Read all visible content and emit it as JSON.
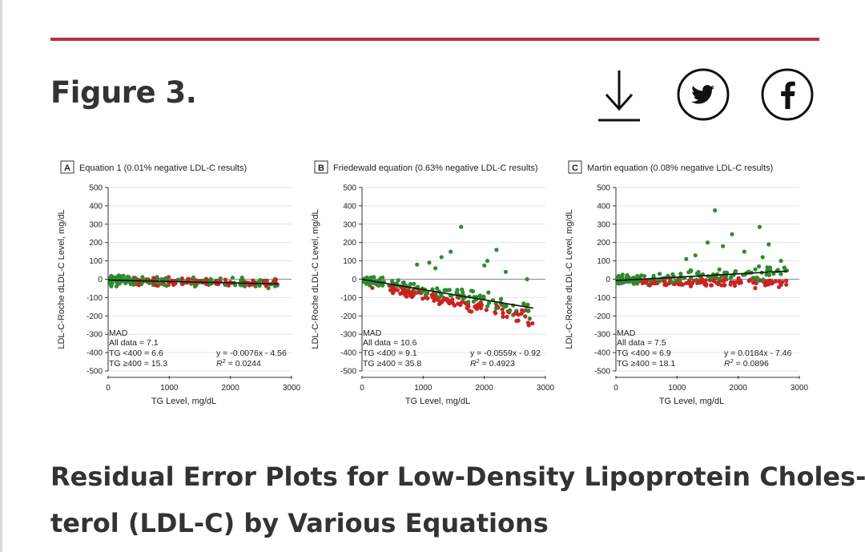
{
  "figure_label": "Figure 3.",
  "caption": {
    "line1": "Residual Error Plots for Low-Density Lipoprotein Choles-",
    "line2": "terol (LDL-C) by Various Equations"
  },
  "share": {
    "download_icon": "download-icon",
    "twitter_icon": "twitter-icon",
    "facebook_icon": "facebook-icon"
  },
  "colors": {
    "accent_rule": "#b5323a",
    "green_points": "#2e8b2e",
    "red_points": "#cc2222",
    "text": "#333333"
  },
  "chart_data": [
    {
      "type": "scatter",
      "panel_letter": "A",
      "title": "Equation 1 (0.01% negative LDL-C results)",
      "xlabel": "TG Level, mg/dL",
      "ylabel": "LDL-C-Roche dLDL-C Level, mg/dL",
      "xlim": [
        0,
        3000
      ],
      "ylim": [
        -500,
        500
      ],
      "x_ticks": [
        "0",
        "1000",
        "2000",
        "3000"
      ],
      "y_ticks": [
        "500",
        "400",
        "300",
        "200",
        "100",
        "0",
        "-100",
        "-200",
        "-300",
        "-400",
        "-500"
      ],
      "grid": true,
      "series": [
        {
          "name": "TG <400",
          "color": "green"
        },
        {
          "name": "TG ≥400",
          "color": "red"
        }
      ],
      "regression": {
        "slope": -0.0076,
        "intercept": -4.56,
        "x_range": [
          0,
          2800
        ]
      },
      "mad": {
        "heading": "MAD",
        "all": "All data = 7.1",
        "lt400": "TG <400 = 6.6",
        "ge400": "TG ≥400 = 15.3"
      },
      "equation_text": "y = -0.0076x - 4.56",
      "r2_label": "R",
      "r2_value": " = 0.0244",
      "scatter": {
        "spread_low": 40,
        "spread_high": 45,
        "red_bias_start": 0,
        "red_bias_end": 0,
        "outliers": []
      }
    },
    {
      "type": "scatter",
      "panel_letter": "B",
      "title": "Friedewald equation (0.63% negative LDL-C results)",
      "xlabel": "TG Level, mg/dL",
      "ylabel": "LDL-C-Roche dLDL-C Level, mg/dL",
      "xlim": [
        0,
        3000
      ],
      "ylim": [
        -500,
        500
      ],
      "x_ticks": [
        "0",
        "1000",
        "2000",
        "3000"
      ],
      "y_ticks": [
        "500",
        "400",
        "300",
        "200",
        "100",
        "0",
        "-100",
        "-200",
        "-300",
        "-400",
        "-500"
      ],
      "grid": true,
      "series": [
        {
          "name": "TG <400",
          "color": "green"
        },
        {
          "name": "TG ≥400",
          "color": "red"
        }
      ],
      "regression": {
        "slope": -0.0559,
        "intercept": -0.92,
        "x_range": [
          0,
          2800
        ]
      },
      "mad": {
        "heading": "MAD",
        "all": "All data = 10.6",
        "lt400": "TG <400 = 9.1",
        "ge400": "TG ≥400 = 35.8"
      },
      "equation_text": "y = -0.0559x - 0.92",
      "r2_label": "R",
      "r2_value": " = 0.4923",
      "scatter": {
        "spread_low": 35,
        "spread_high": 75,
        "red_bias_start": -20,
        "red_bias_end": -60,
        "outliers": [
          [
            1620,
            285
          ],
          [
            1300,
            120
          ],
          [
            1100,
            90
          ],
          [
            1450,
            150
          ],
          [
            2200,
            160
          ],
          [
            2000,
            75
          ],
          [
            2050,
            100
          ],
          [
            2700,
            0
          ],
          [
            2350,
            40
          ],
          [
            900,
            80
          ],
          [
            1200,
            60
          ]
        ]
      }
    },
    {
      "type": "scatter",
      "panel_letter": "C",
      "title": "Martin equation (0.08% negative LDL-C results)",
      "xlabel": "TG Level, mg/dL",
      "ylabel": "LDL-C-Roche dLDL-C Level, mg/dL",
      "xlim": [
        0,
        3000
      ],
      "ylim": [
        -500,
        500
      ],
      "x_ticks": [
        "0",
        "1000",
        "2000",
        "3000"
      ],
      "y_ticks": [
        "500",
        "400",
        "300",
        "200",
        "100",
        "0",
        "-100",
        "-200",
        "-300",
        "-400",
        "-500"
      ],
      "grid": true,
      "series": [
        {
          "name": "TG <400",
          "color": "green"
        },
        {
          "name": "TG ≥400",
          "color": "red"
        }
      ],
      "regression": {
        "slope": 0.0184,
        "intercept": -7.46,
        "x_range": [
          0,
          2800
        ]
      },
      "mad": {
        "heading": "MAD",
        "all": "All data = 7.5",
        "lt400": "TG <400 = 6.9",
        "ge400": "TG ≥400 = 18.1"
      },
      "equation_text": "y = 0.0184x - 7.46",
      "r2_label": "R",
      "r2_value": " = 0.0896",
      "scatter": {
        "spread_low": 35,
        "spread_high": 60,
        "red_bias_start": -10,
        "red_bias_end": -60,
        "outliers": [
          [
            1620,
            375
          ],
          [
            2350,
            285
          ],
          [
            1900,
            245
          ],
          [
            1500,
            200
          ],
          [
            1750,
            180
          ],
          [
            2500,
            190
          ],
          [
            2100,
            150
          ],
          [
            1300,
            130
          ],
          [
            2700,
            100
          ],
          [
            1150,
            110
          ],
          [
            2400,
            120
          ]
        ]
      }
    }
  ]
}
